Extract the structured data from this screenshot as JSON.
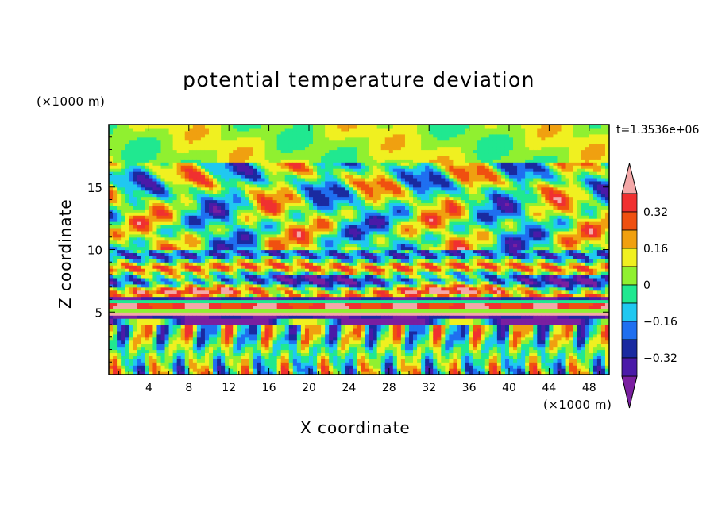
{
  "chart_data": {
    "type": "heatmap",
    "title": "potential temperature deviation",
    "xlabel": "X coordinate",
    "ylabel": "Z coordinate",
    "x_unit_label": "(×1000 m)",
    "z_unit_label": "(×1000 m)",
    "time_label": "t=1.3536e+06",
    "xlim": [
      0,
      50
    ],
    "ylim": [
      0,
      20
    ],
    "x_ticks": [
      4,
      8,
      12,
      16,
      20,
      24,
      28,
      32,
      36,
      40,
      44,
      48
    ],
    "y_ticks": [
      5,
      10,
      15
    ],
    "grid": false,
    "colorbar": {
      "placement": "right",
      "levels": [
        -0.4,
        -0.32,
        -0.24,
        -0.16,
        -0.08,
        0,
        0.08,
        0.16,
        0.24,
        0.32,
        0.4
      ],
      "labels": [
        "0.32",
        "0.16",
        "0",
        "−0.16",
        "−0.32"
      ],
      "label_values": [
        0.32,
        0.16,
        0,
        -0.16,
        -0.32
      ],
      "colors": [
        "#7a1fa0",
        "#4a1aa8",
        "#1a2aa0",
        "#1f6ff0",
        "#20c8f0",
        "#20e890",
        "#90f030",
        "#f0f020",
        "#f0a010",
        "#f05010",
        "#f03030",
        "#f4a8a8"
      ],
      "extend": "both"
    },
    "description_bands": [
      {
        "z_range": [
          15,
          19.5
        ],
        "feature": "alternating warm/cold blobs"
      },
      {
        "z_range": [
          4,
          5
        ],
        "feature": "strong horizontal layering"
      }
    ]
  }
}
